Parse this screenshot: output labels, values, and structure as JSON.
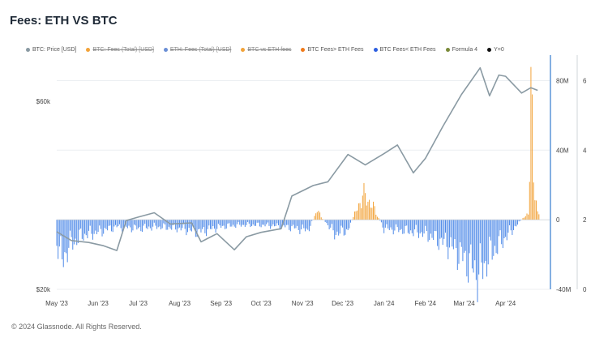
{
  "title": "Fees: ETH VS BTC",
  "footer": "© 2024 Glassnode. All Rights Reserved.",
  "legend": [
    {
      "label": "BTC: Price [USD]",
      "color": "#8a9aa3",
      "off": false
    },
    {
      "label": "BTC: Fees (Total) [USD]",
      "color": "#f2a33a",
      "off": true
    },
    {
      "label": "ETH: Fees (Total) [USD]",
      "color": "#6b8fd6",
      "off": true
    },
    {
      "label": "BTC vs ETH fees",
      "color": "#f2a33a",
      "off": true
    },
    {
      "label": "BTC Fees> ETH Fees",
      "color": "#f07a1a",
      "off": false
    },
    {
      "label": "BTC Fees< ETH Fees",
      "color": "#2d5fe0",
      "off": false
    },
    {
      "label": "Formula 4",
      "color": "#7a8a3a",
      "off": false
    },
    {
      "label": "Y=0",
      "color": "#111111",
      "off": false
    }
  ],
  "chart_data": {
    "type": "line+bar",
    "x_ticks": [
      "May '23",
      "Jun '23",
      "Jul '23",
      "Aug '23",
      "Sep '23",
      "Oct '23",
      "Nov '23",
      "Dec '23",
      "Jan '24",
      "Feb '24",
      "Mar '24",
      "Apr '24"
    ],
    "left_axis": {
      "scale": "log",
      "ticks": [
        "$60k",
        "$20k"
      ],
      "range": [
        20000,
        75000
      ]
    },
    "mid_axis": {
      "ticks": [
        "80M",
        "40M",
        "0",
        "-40M"
      ],
      "range": [
        -40000000,
        90000000
      ]
    },
    "right_axis": {
      "ticks": [
        "6",
        "4",
        "2",
        "0"
      ],
      "range": [
        0,
        6.5
      ]
    },
    "price_series": {
      "name": "BTC: Price [USD]",
      "color": "#8a9aa3",
      "points": [
        [
          "2023-05-01",
          28000
        ],
        [
          "2023-05-12",
          26600
        ],
        [
          "2023-05-25",
          26300
        ],
        [
          "2023-06-05",
          25800
        ],
        [
          "2023-06-15",
          25100
        ],
        [
          "2023-06-22",
          29900
        ],
        [
          "2023-07-01",
          30500
        ],
        [
          "2023-07-13",
          31300
        ],
        [
          "2023-07-25",
          29300
        ],
        [
          "2023-08-10",
          29500
        ],
        [
          "2023-08-17",
          26400
        ],
        [
          "2023-08-29",
          27700
        ],
        [
          "2023-09-11",
          25200
        ],
        [
          "2023-09-20",
          27200
        ],
        [
          "2023-10-01",
          27900
        ],
        [
          "2023-10-16",
          28500
        ],
        [
          "2023-10-24",
          34500
        ],
        [
          "2023-11-09",
          36700
        ],
        [
          "2023-11-20",
          37500
        ],
        [
          "2023-12-05",
          44000
        ],
        [
          "2023-12-18",
          41400
        ],
        [
          "2024-01-01",
          44200
        ],
        [
          "2024-01-11",
          46500
        ],
        [
          "2024-01-23",
          39500
        ],
        [
          "2024-02-01",
          43000
        ],
        [
          "2024-02-14",
          51800
        ],
        [
          "2024-02-28",
          62500
        ],
        [
          "2024-03-13",
          73000
        ],
        [
          "2024-03-20",
          62000
        ],
        [
          "2024-03-27",
          70000
        ],
        [
          "2024-04-01",
          69500
        ],
        [
          "2024-04-13",
          63000
        ],
        [
          "2024-04-20",
          65000
        ],
        [
          "2024-04-25",
          64000
        ]
      ]
    },
    "diff_bars": {
      "name": "BTC vs ETH fees",
      "positive_color": "#f2a33a",
      "negative_color": "#4f8ae8",
      "description": "daily difference between BTC fees and ETH fees (USD)",
      "samples": [
        [
          "2023-05-01",
          -12000000
        ],
        [
          "2023-05-05",
          -24000000
        ],
        [
          "2023-05-10",
          -15000000
        ],
        [
          "2023-05-20",
          -9000000
        ],
        [
          "2023-06-01",
          -7000000
        ],
        [
          "2023-06-15",
          -4000000
        ],
        [
          "2023-07-01",
          -5000000
        ],
        [
          "2023-07-15",
          -4000000
        ],
        [
          "2023-08-01",
          -5000000
        ],
        [
          "2023-08-15",
          -7000000
        ],
        [
          "2023-09-01",
          -4000000
        ],
        [
          "2023-09-15",
          -3000000
        ],
        [
          "2023-10-01",
          -3000000
        ],
        [
          "2023-10-20",
          -4000000
        ],
        [
          "2023-11-05",
          -6000000
        ],
        [
          "2023-11-12",
          5000000
        ],
        [
          "2023-11-25",
          -8000000
        ],
        [
          "2023-12-05",
          -6000000
        ],
        [
          "2023-12-16",
          14000000
        ],
        [
          "2023-12-22",
          10000000
        ],
        [
          "2024-01-01",
          -5000000
        ],
        [
          "2024-01-15",
          -6000000
        ],
        [
          "2024-02-01",
          -8000000
        ],
        [
          "2024-02-20",
          -15000000
        ],
        [
          "2024-03-05",
          -25000000
        ],
        [
          "2024-03-12",
          -32000000
        ],
        [
          "2024-03-20",
          -20000000
        ],
        [
          "2024-04-01",
          -10000000
        ],
        [
          "2024-04-18",
          4000000
        ],
        [
          "2024-04-20",
          70000000
        ],
        [
          "2024-04-22",
          22000000
        ],
        [
          "2024-04-25",
          5000000
        ]
      ]
    },
    "grid": true
  }
}
